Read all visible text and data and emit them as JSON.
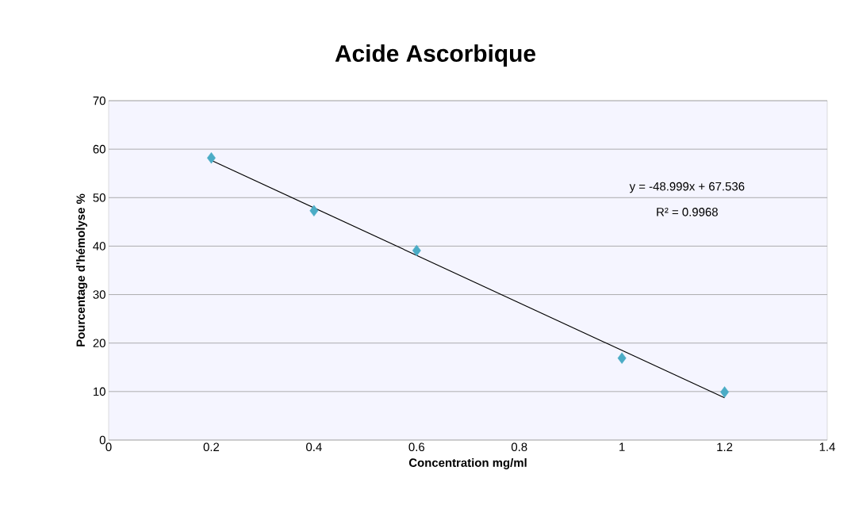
{
  "chart_data": {
    "type": "scatter",
    "title": "Acide Ascorbique",
    "xlabel": "Concentration mg/ml",
    "ylabel": "Pourcentage d'hémolyse %",
    "series": [
      {
        "color": "#4bacc6",
        "marker": "diamond",
        "x": [
          0.2,
          0.4,
          0.6,
          1.0,
          1.2
        ],
        "values": [
          58.2,
          47.3,
          39.1,
          16.9,
          9.9
        ]
      },
      {
        "type": "line",
        "color": "#000000",
        "marker": "none",
        "line_style": "solid",
        "x": [
          0.2,
          1.2
        ],
        "values": [
          57.7,
          8.7
        ]
      }
    ],
    "annotations": [
      "y = -48.999x + 67.536",
      "R² = 0.9968"
    ],
    "xlim": [
      0,
      1.4
    ],
    "xticks": [
      0,
      0.2,
      0.4,
      0.6,
      0.8,
      1,
      1.2,
      1.4
    ],
    "ylim": [
      0,
      70
    ],
    "yticks": [
      0,
      10,
      20,
      30,
      40,
      50,
      60,
      70
    ],
    "grid": "y"
  }
}
